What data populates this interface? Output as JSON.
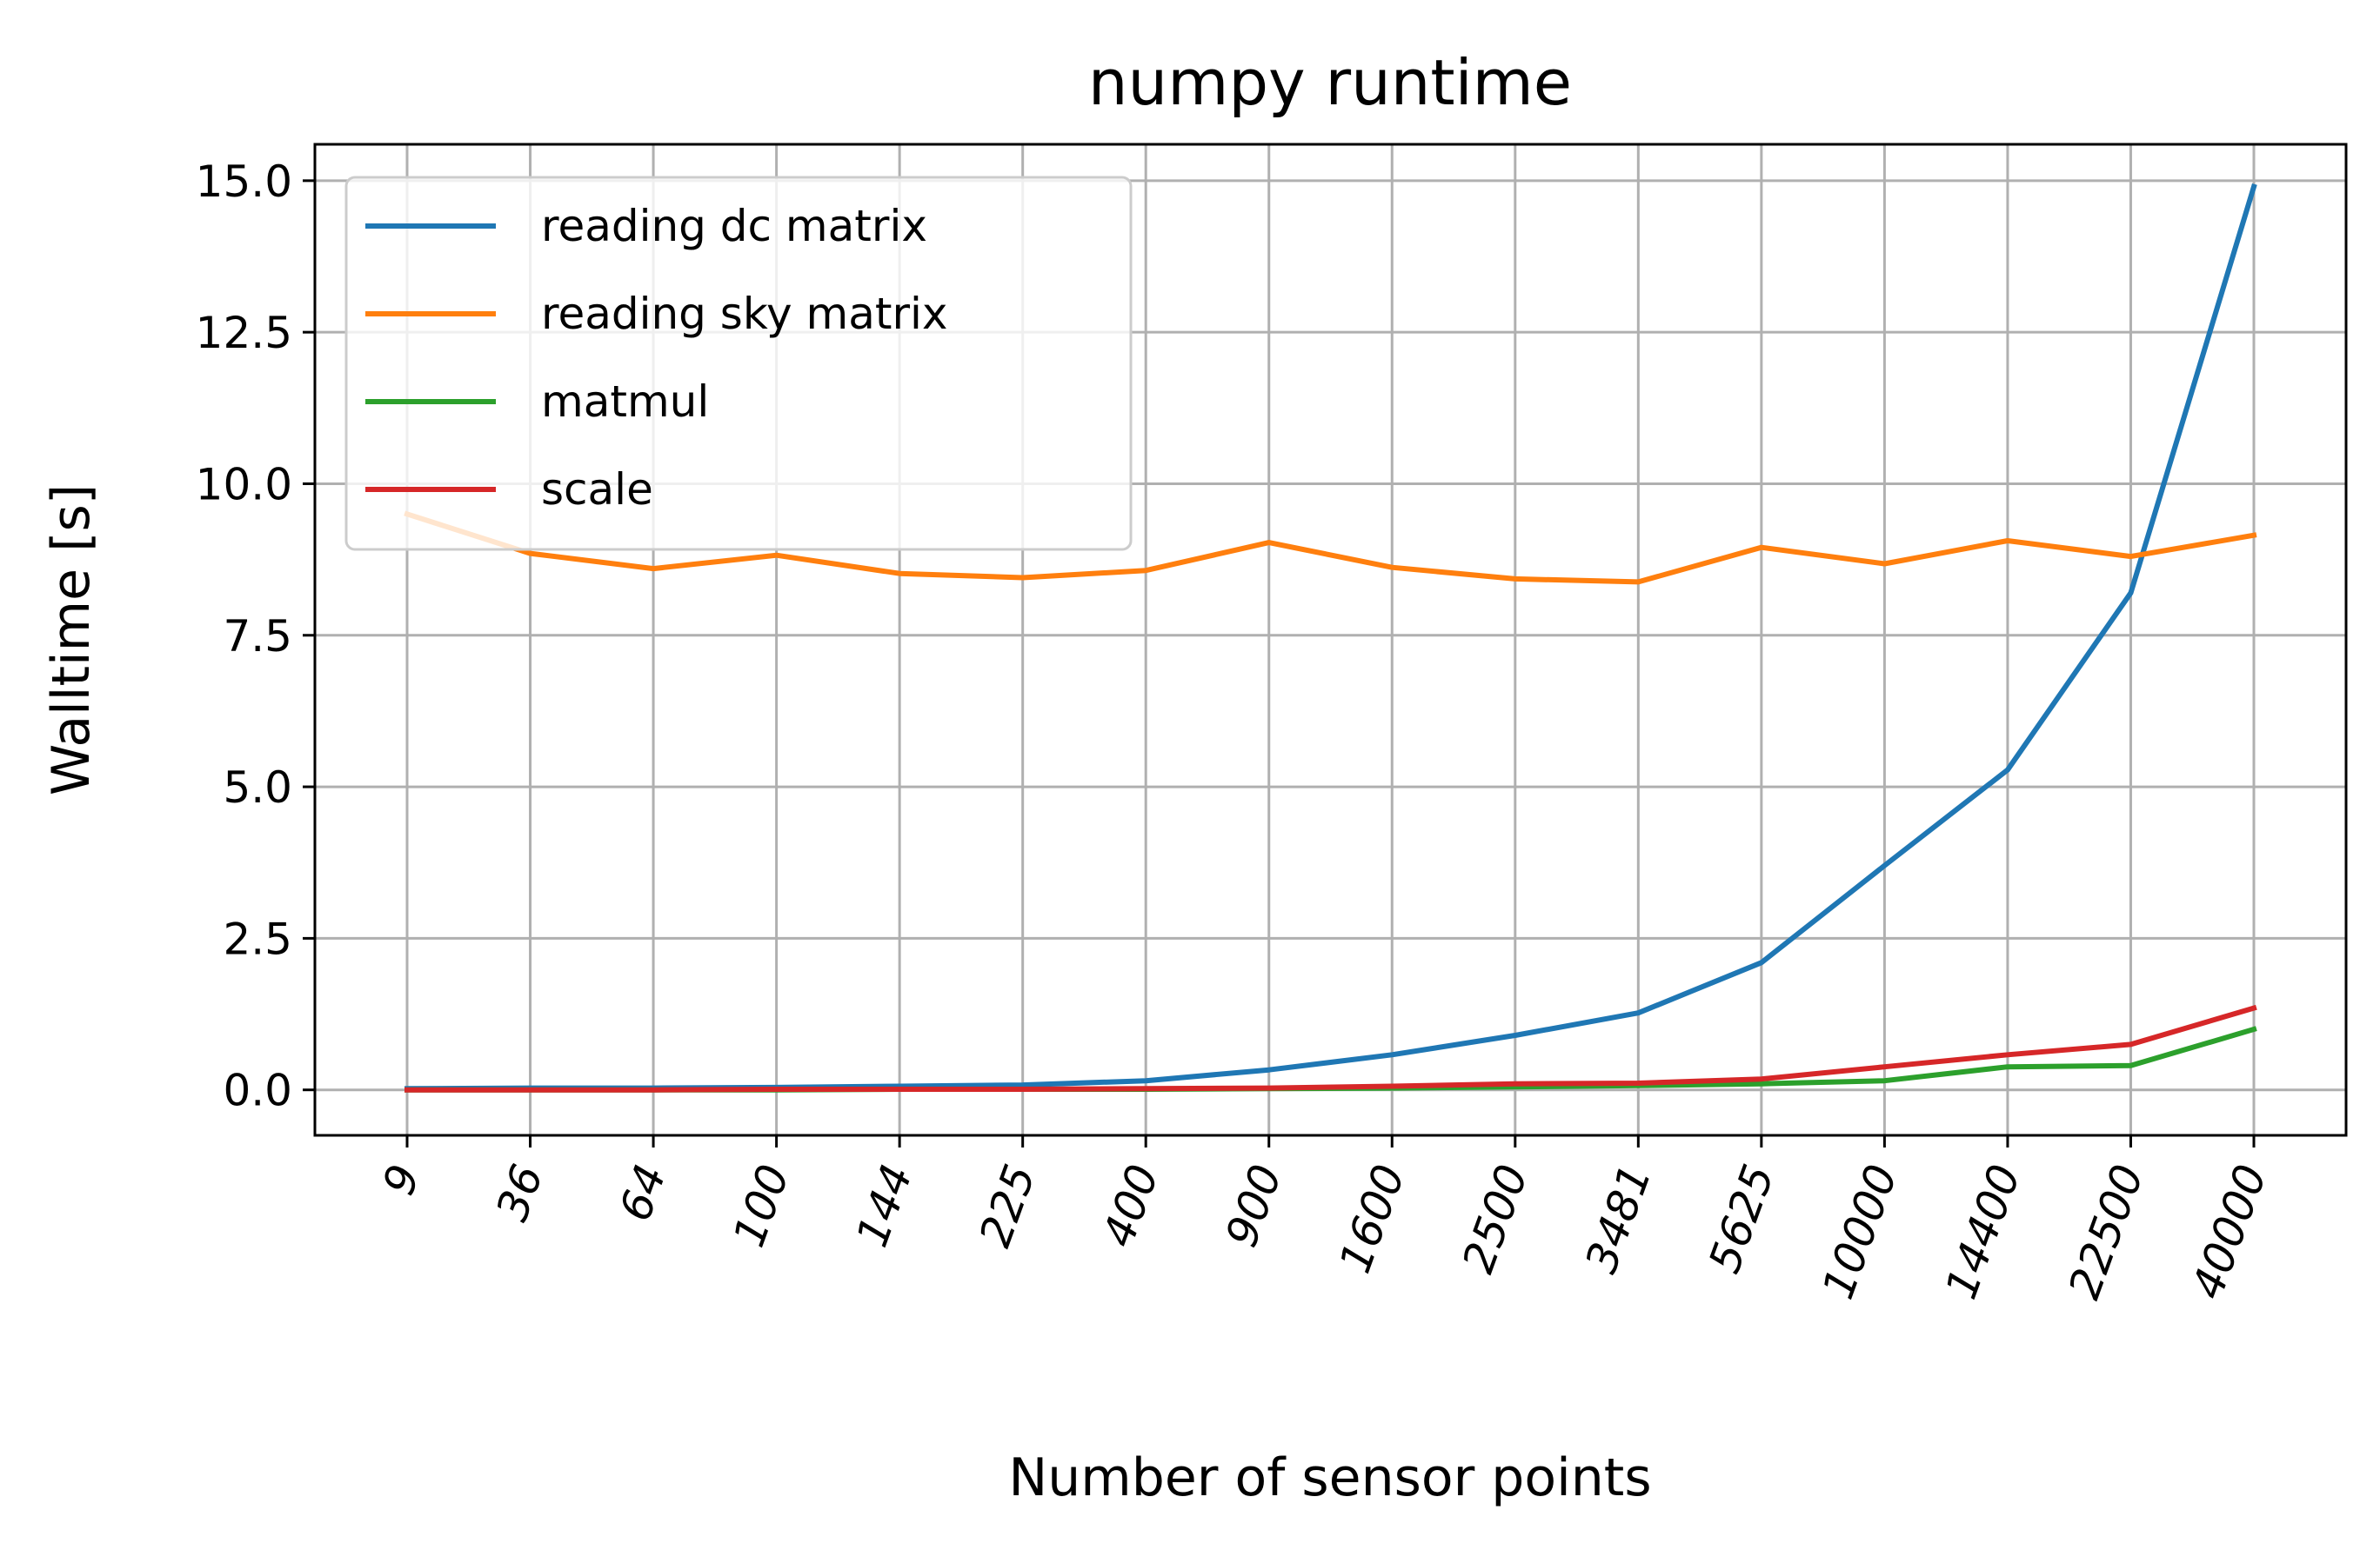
{
  "chart_data": {
    "type": "line",
    "title": "numpy runtime",
    "xlabel": "Number of sensor points",
    "ylabel": "Walltime [s]",
    "categories": [
      "9",
      "36",
      "64",
      "100",
      "144",
      "225",
      "400",
      "900",
      "1600",
      "2500",
      "3481",
      "5625",
      "10000",
      "14400",
      "22500",
      "40000"
    ],
    "ylim": [
      -0.75,
      15.6
    ],
    "yticks": [
      "0.0",
      "2.5",
      "5.0",
      "7.5",
      "10.0",
      "12.5",
      "15.0"
    ],
    "grid": true,
    "legend_position": "upper-left",
    "series": [
      {
        "name": "reading dc matrix",
        "color": "#1f77b4",
        "values": [
          0.02,
          0.03,
          0.03,
          0.04,
          0.06,
          0.08,
          0.15,
          0.33,
          0.58,
          0.9,
          1.27,
          2.1,
          3.7,
          5.28,
          8.2,
          14.9
        ]
      },
      {
        "name": "reading sky matrix",
        "color": "#ff7f0e",
        "values": [
          9.5,
          8.85,
          8.6,
          8.82,
          8.52,
          8.45,
          8.57,
          9.03,
          8.62,
          8.43,
          8.38,
          8.95,
          8.68,
          9.06,
          8.8,
          9.15
        ]
      },
      {
        "name": "matmul",
        "color": "#2ca02c",
        "values": [
          0.0,
          0.0,
          0.0,
          0.0,
          0.01,
          0.01,
          0.01,
          0.02,
          0.03,
          0.05,
          0.07,
          0.1,
          0.15,
          0.38,
          0.4,
          1.0
        ]
      },
      {
        "name": "scale",
        "color": "#d62728",
        "values": [
          0.0,
          0.0,
          0.0,
          0.01,
          0.01,
          0.01,
          0.02,
          0.03,
          0.06,
          0.1,
          0.11,
          0.18,
          0.38,
          0.58,
          0.75,
          1.35
        ]
      }
    ]
  }
}
